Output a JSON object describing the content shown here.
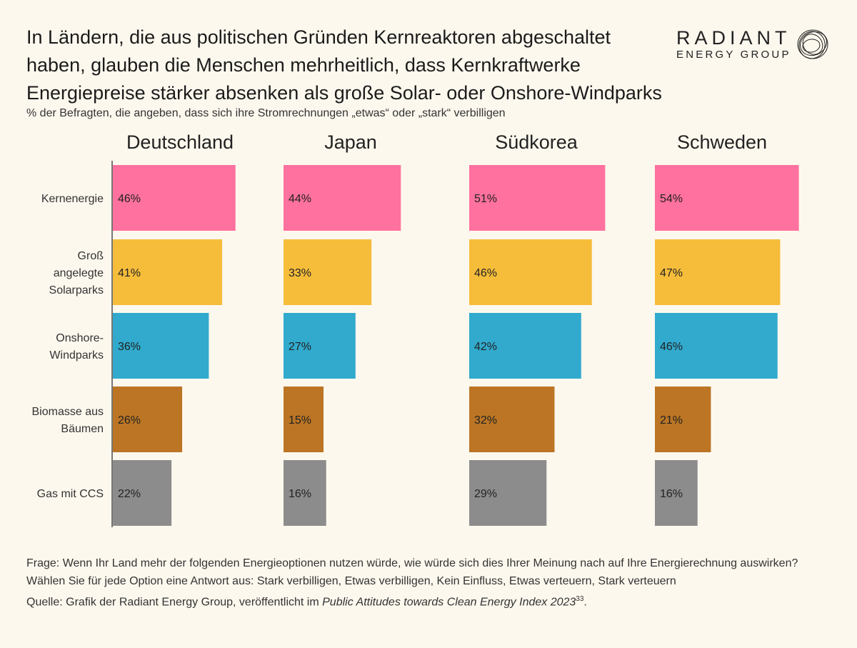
{
  "title": "In Ländern, die aus politischen Gründen Kernreaktoren abgeschaltet haben, glauben die Menschen mehrheitlich, dass Kernkraftwerke Energiepreise stärker absenken als große Solar- oder Onshore-Windparks",
  "subtitle": "% der Befragten, die angeben, dass sich ihre Stromrechnungen „etwas“ oder „stark“ verbilligen",
  "logo": {
    "line1": "RADIANT",
    "line2": "ENERGY GROUP"
  },
  "footer": {
    "question": "Frage: Wenn Ihr Land mehr der folgenden Energieoptionen nutzen würde, wie würde sich dies Ihrer Meinung nach auf Ihre Energierechnung auswirken? Wählen Sie für jede Option eine Antwort aus: Stark verbilligen, Etwas verbilligen, Kein Einfluss, Etwas verteuern, Stark verteuern",
    "source_prefix": "Quelle: Grafik der Radiant Energy Group, veröffentlicht im ",
    "source_title": "Public Attitudes towards Clean Energy Index 2023",
    "source_ref": "33",
    "source_suffix": "."
  },
  "chart_data": {
    "type": "bar",
    "orientation": "horizontal",
    "categories": [
      [
        "Kernenergie"
      ],
      [
        "Groß",
        "angelegte",
        "Solarparks"
      ],
      [
        "Onshore-",
        "Windparks"
      ],
      [
        "Biomasse aus",
        "Bäumen"
      ],
      [
        "Gas mit CCS"
      ]
    ],
    "category_colors": [
      "#ff719e",
      "#f6bd3b",
      "#31aacd",
      "#bb7524",
      "#8c8c8c"
    ],
    "value_suffix": "%",
    "xlim": [
      0,
      60
    ],
    "panels": [
      {
        "name": "Deutschland",
        "values": [
          46,
          41,
          36,
          26,
          22
        ]
      },
      {
        "name": "Japan",
        "values": [
          44,
          33,
          27,
          15,
          16
        ]
      },
      {
        "name": "Südkorea",
        "values": [
          51,
          46,
          42,
          32,
          29
        ]
      },
      {
        "name": "Schweden",
        "values": [
          54,
          47,
          46,
          21,
          16
        ]
      }
    ]
  }
}
